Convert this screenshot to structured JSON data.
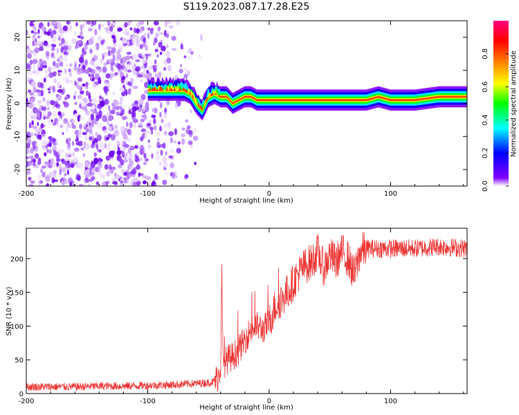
{
  "figure_title": "S119.2023.087.17.28.E25",
  "chart_data": [
    {
      "type": "heatmap",
      "xlabel": "Height of straight line (km)",
      "ylabel": "Frequency (Hz)",
      "xlim": [
        -200,
        163
      ],
      "ylim": [
        -25,
        25
      ],
      "x_ticks": [
        -200,
        -100,
        0,
        100
      ],
      "y_ticks": [
        -20,
        -10,
        0,
        10,
        20
      ],
      "colorbar": {
        "label": "Normalized spectral amplitude",
        "range": [
          0.0,
          1.0
        ],
        "ticks": [
          0.0,
          0.2,
          0.4,
          0.6,
          0.8
        ],
        "colormap": [
          "#ffffff",
          "#7f00ff",
          "#0000ff",
          "#00ffff",
          "#00ff00",
          "#ffff00",
          "#ff8000",
          "#ff0000",
          "#ff0080"
        ]
      },
      "ridge": {
        "description_values": "peak frequency (Hz) vs height (km)",
        "x": [
          -100,
          -90,
          -80,
          -70,
          -65,
          -60,
          -55,
          -50,
          -45,
          -40,
          -35,
          -30,
          -25,
          -20,
          -15,
          -10,
          -5,
          0,
          20,
          40,
          60,
          80,
          90,
          100,
          120,
          140,
          163
        ],
        "y": [
          4,
          4,
          4,
          4,
          3,
          0,
          -2,
          2,
          3,
          2,
          2,
          0,
          1,
          2,
          2,
          1,
          1,
          1,
          1,
          1,
          1,
          1,
          2,
          1,
          1,
          2,
          2
        ]
      },
      "noise_region_x": [
        -200,
        -55
      ]
    },
    {
      "type": "line",
      "xlabel": "Height of straight line (km)",
      "ylabel": "SNR (10 * v/v)",
      "xlim": [
        -200,
        163
      ],
      "ylim": [
        0,
        245
      ],
      "x_ticks": [
        -200,
        -100,
        0,
        100
      ],
      "y_ticks": [
        0,
        50,
        100,
        150,
        200
      ],
      "color": "#ee3333",
      "series": [
        {
          "x": [
            -200,
            -180,
            -160,
            -140,
            -120,
            -100,
            -80,
            -70,
            -60,
            -50,
            -45,
            -42,
            -40,
            -39,
            -38,
            -35,
            -30,
            -25,
            -20,
            -15,
            -10,
            -5,
            0,
            5,
            10,
            15,
            20,
            25,
            30,
            35,
            40,
            45,
            50,
            55,
            60,
            65,
            70,
            75,
            80,
            90,
            100,
            120,
            140,
            163
          ],
          "y": [
            10,
            10,
            10,
            11,
            11,
            12,
            13,
            14,
            15,
            16,
            18,
            25,
            40,
            175,
            40,
            50,
            55,
            65,
            80,
            95,
            100,
            95,
            105,
            130,
            140,
            150,
            165,
            180,
            190,
            195,
            210,
            185,
            205,
            195,
            210,
            200,
            175,
            210,
            215,
            215,
            215,
            215,
            218,
            215
          ]
        }
      ]
    }
  ]
}
